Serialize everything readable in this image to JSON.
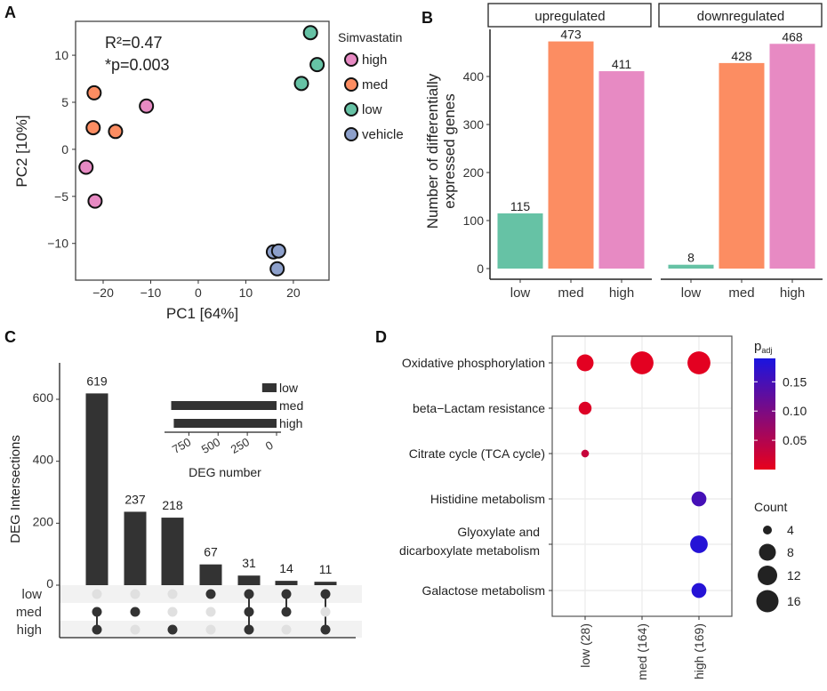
{
  "panel_labels": [
    "A",
    "B",
    "C",
    "D"
  ],
  "chart_data": [
    {
      "panel": "A",
      "type": "scatter",
      "xlabel": "PC1 [64%]",
      "ylabel": "PC2 [10%]",
      "xlim": [
        -25.8,
        27.5
      ],
      "ylim": [
        -13.9,
        13.6
      ],
      "xticks": [
        -20,
        -10,
        0,
        10,
        20
      ],
      "yticks": [
        -10,
        -5,
        0,
        5,
        10
      ],
      "annotations": [
        "R²=0.47",
        "*p=0.003"
      ],
      "legend_title": "Simvastatin",
      "legend_position": "right",
      "series": [
        {
          "name": "high",
          "color": "#e78ac3",
          "points": [
            [
              -10.9,
              4.6
            ],
            [
              -23.6,
              -1.9
            ],
            [
              -21.7,
              -5.5
            ]
          ]
        },
        {
          "name": "med",
          "color": "#fc8d62",
          "points": [
            [
              -21.9,
              6.0
            ],
            [
              -22.1,
              2.3
            ],
            [
              -17.4,
              1.9
            ]
          ]
        },
        {
          "name": "low",
          "color": "#66c2a5",
          "points": [
            [
              23.6,
              12.4
            ],
            [
              25.0,
              9.0
            ],
            [
              21.7,
              7.0
            ]
          ]
        },
        {
          "name": "vehicle",
          "color": "#8da0cb",
          "points": [
            [
              15.8,
              -10.9
            ],
            [
              16.9,
              -10.8
            ],
            [
              16.6,
              -12.7
            ]
          ]
        }
      ]
    },
    {
      "panel": "B",
      "type": "bar",
      "ylabel": [
        "Number of differentially",
        "expressed genes"
      ],
      "ylim": [
        0,
        490
      ],
      "yticks": [
        0,
        100,
        200,
        300,
        400
      ],
      "categories": [
        "low",
        "med",
        "high"
      ],
      "colors": [
        "#66c2a5",
        "#fc8d62",
        "#e78ac3"
      ],
      "facets": [
        {
          "name": "upregulated",
          "values": [
            115,
            473,
            411
          ]
        },
        {
          "name": "downregulated",
          "values": [
            8,
            428,
            468
          ]
        }
      ]
    },
    {
      "panel": "C",
      "type": "bar",
      "ylabel": "DEG Intersections",
      "ylim": [
        0,
        700
      ],
      "yticks": [
        0,
        200,
        400,
        600
      ],
      "sets": [
        "low",
        "med",
        "high"
      ],
      "intersections": [
        {
          "value": 619,
          "members": [
            "med",
            "high"
          ]
        },
        {
          "value": 237,
          "members": [
            "med"
          ]
        },
        {
          "value": 218,
          "members": [
            "high"
          ]
        },
        {
          "value": 67,
          "members": [
            "low"
          ]
        },
        {
          "value": 31,
          "members": [
            "low",
            "med",
            "high"
          ]
        },
        {
          "value": 14,
          "members": [
            "low",
            "med"
          ]
        },
        {
          "value": 11,
          "members": [
            "low",
            "high"
          ]
        }
      ],
      "inset": {
        "xlabel": "DEG number",
        "xticks": [
          750,
          500,
          250,
          0
        ],
        "categories": [
          "low",
          "med",
          "high"
        ],
        "values": [
          123,
          901,
          879
        ]
      }
    },
    {
      "panel": "D",
      "type": "scatter",
      "rows": [
        [
          "Oxidative phosphorylation"
        ],
        [
          "beta−Lactam resistance"
        ],
        [
          "Citrate cycle (TCA cycle)"
        ],
        [
          "Histidine metabolism"
        ],
        [
          "Glyoxylate and",
          "dicarboxylate metabolism"
        ],
        [
          "Galactose metabolism"
        ]
      ],
      "columns": [
        "low (28)",
        "med (164)",
        "high (169)"
      ],
      "points": [
        {
          "row": 0,
          "col": 0,
          "count": 8,
          "padj": 0.005
        },
        {
          "row": 0,
          "col": 1,
          "count": 17,
          "padj": 0.005
        },
        {
          "row": 0,
          "col": 2,
          "count": 17,
          "padj": 0.005
        },
        {
          "row": 1,
          "col": 0,
          "count": 6,
          "padj": 0.01
        },
        {
          "row": 2,
          "col": 0,
          "count": 3,
          "padj": 0.03
        },
        {
          "row": 3,
          "col": 2,
          "count": 7,
          "padj": 0.15
        },
        {
          "row": 4,
          "col": 2,
          "count": 9,
          "padj": 0.18
        },
        {
          "row": 5,
          "col": 2,
          "count": 7,
          "padj": 0.18
        }
      ],
      "color_legend": {
        "title": "p",
        "subscript": "adj",
        "ticks": [
          0.05,
          0.1,
          0.15
        ],
        "tick_labels": [
          "0.05",
          "0.10",
          "0.15"
        ],
        "range": [
          0,
          0.19
        ],
        "low_color": "#e8001c",
        "high_color": "#1a14e0"
      },
      "size_legend": {
        "title": "Count",
        "values": [
          4,
          8,
          12,
          16
        ]
      }
    }
  ]
}
